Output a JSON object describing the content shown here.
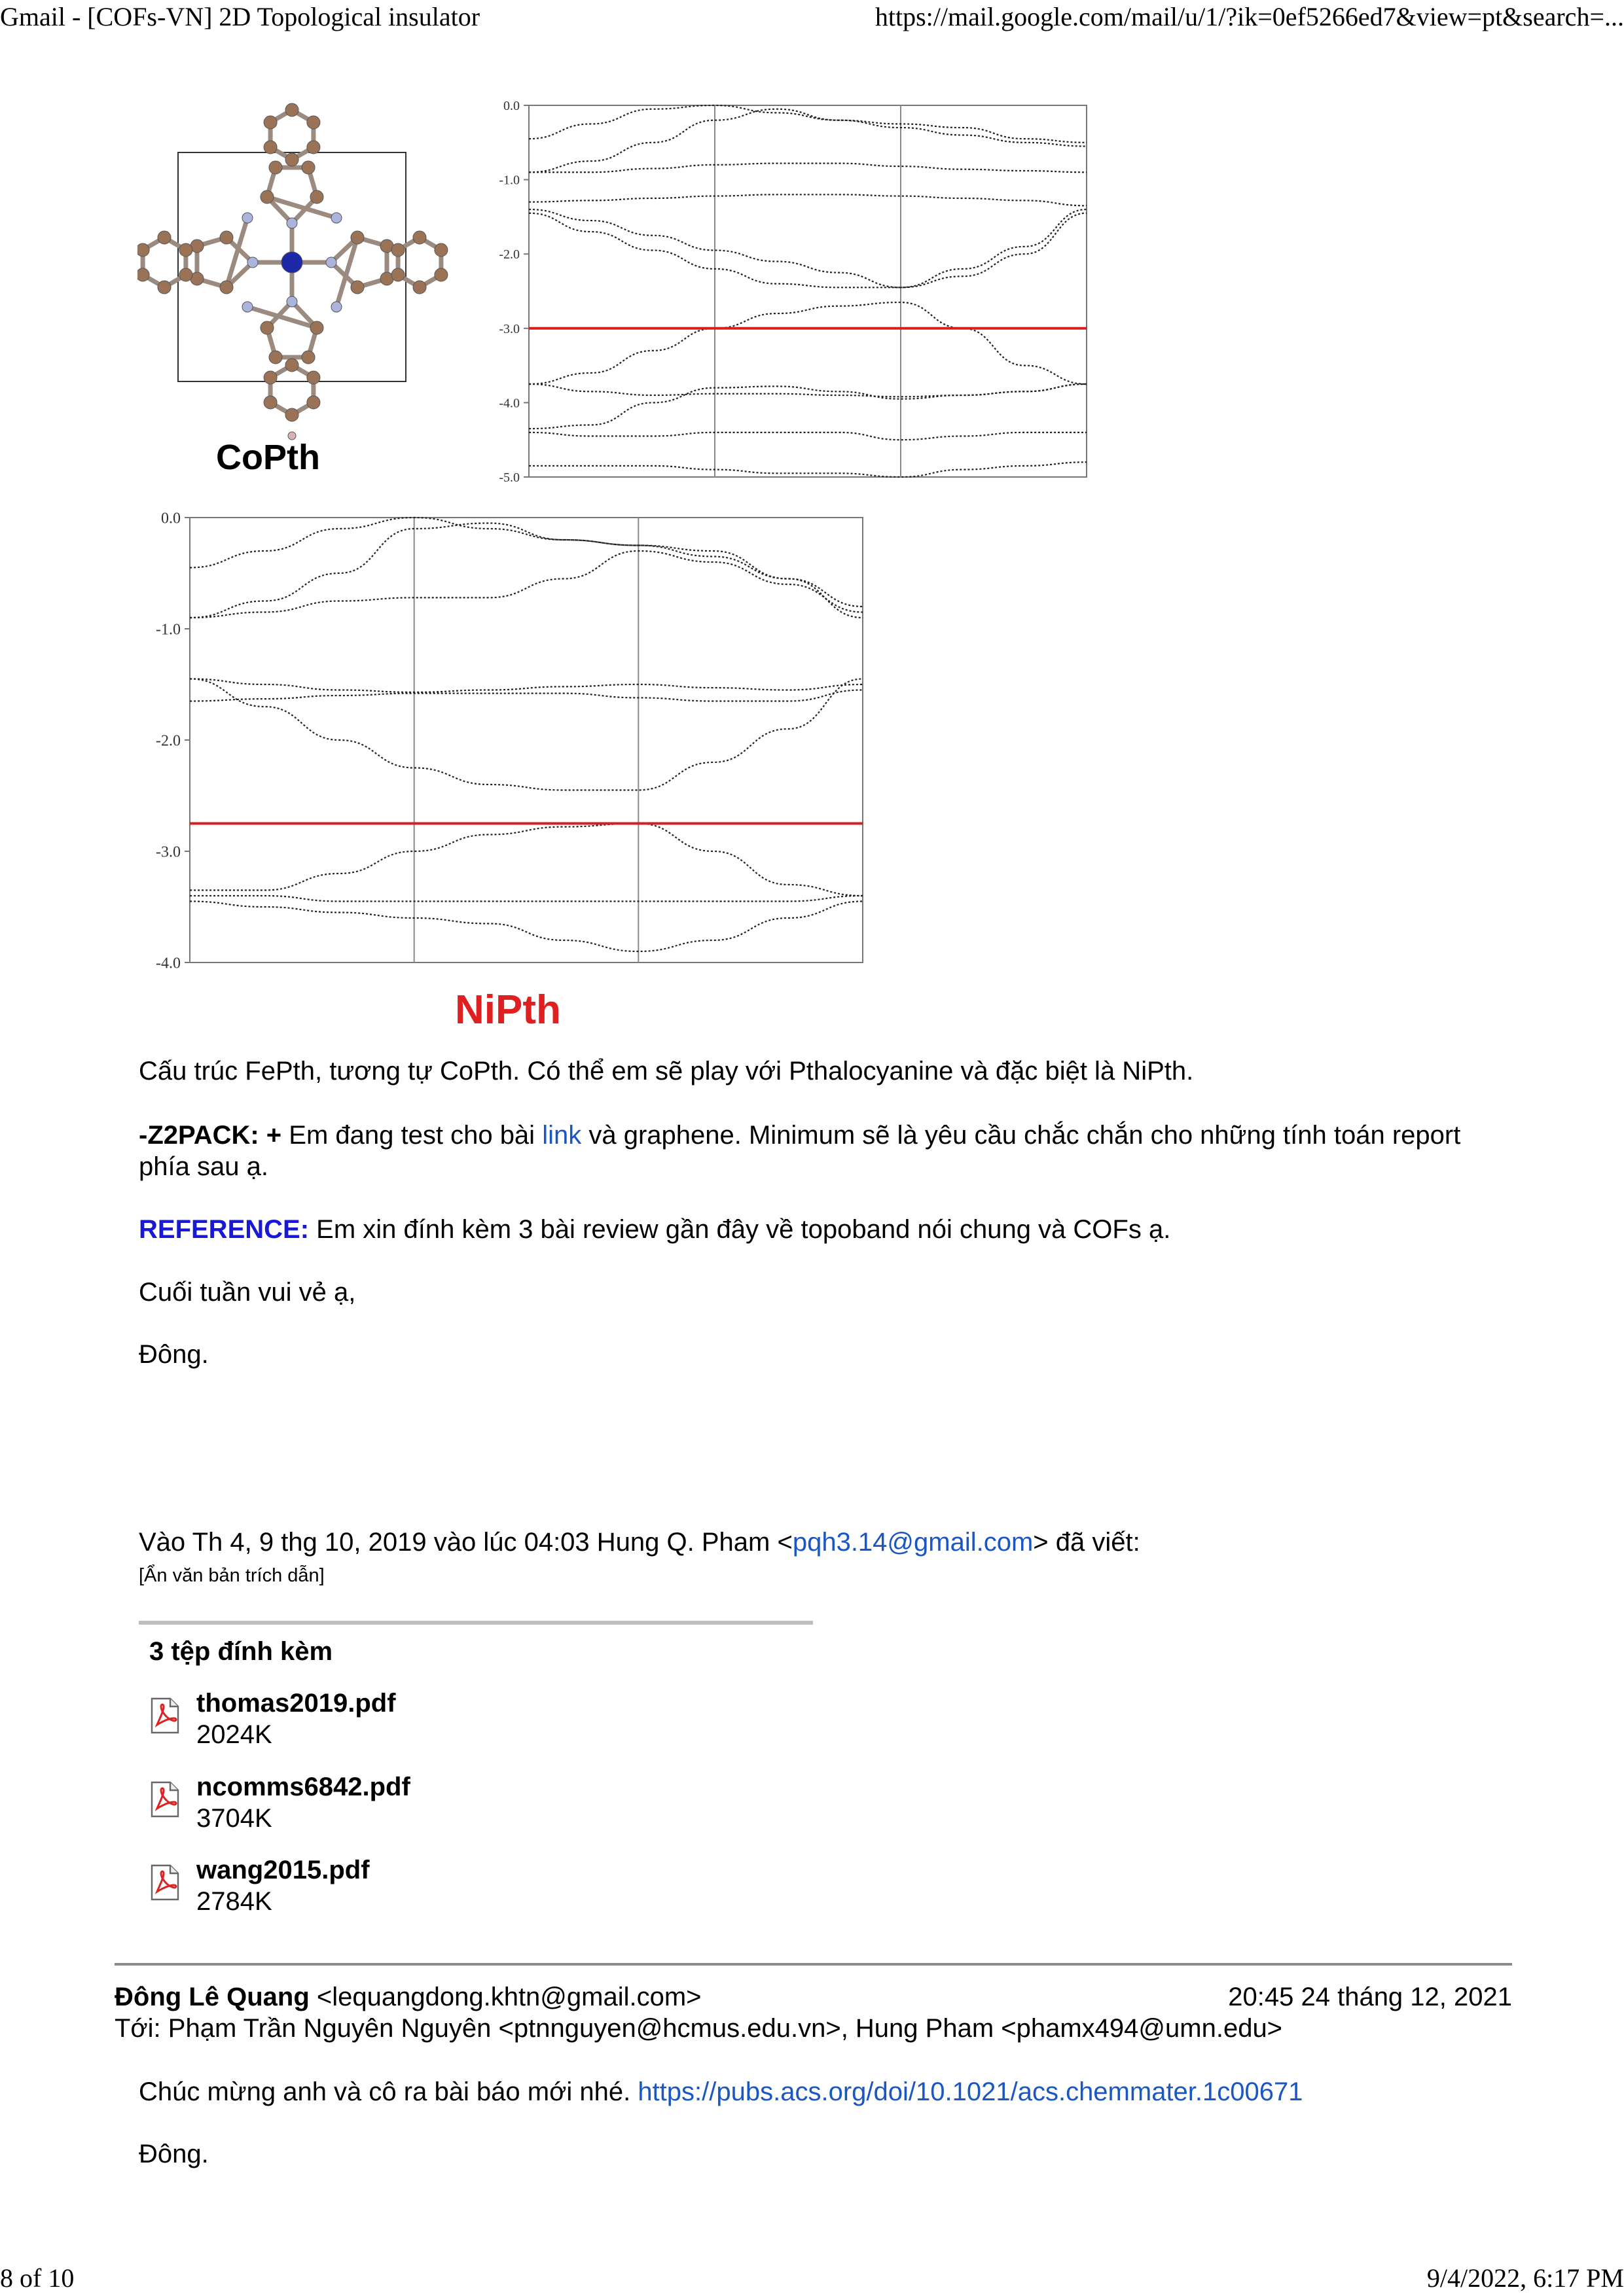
{
  "header": {
    "title": "Gmail - [COFs-VN] 2D Topological insulator",
    "url": "https://mail.google.com/mail/u/1/?ik=0ef5266ed7&view=pt&search=..."
  },
  "footer": {
    "page": "8 of 10",
    "datetime": "9/4/2022, 6:17 PM"
  },
  "figures": {
    "copth_label": "CoPth",
    "nipth_label": "NiPth"
  },
  "chart_data": [
    {
      "type": "line",
      "name_ref": "CoPth band structure",
      "ylim": [
        -5.0,
        0.0
      ],
      "yticks": [
        "0.0",
        "-1.0",
        "-2.0",
        "-3.0",
        "-4.0",
        "-5.0"
      ],
      "fermi_level": -3.0,
      "x_segments": 3,
      "bands": [
        [
          -0.45,
          -0.25,
          -0.05,
          0.0,
          -0.1,
          -0.2,
          -0.25,
          -0.3,
          -0.45,
          -0.5
        ],
        [
          -0.9,
          -0.75,
          -0.5,
          -0.2,
          -0.05,
          -0.2,
          -0.3,
          -0.4,
          -0.5,
          -0.55
        ],
        [
          -0.9,
          -0.9,
          -0.85,
          -0.8,
          -0.78,
          -0.78,
          -0.82,
          -0.86,
          -0.88,
          -0.9
        ],
        [
          -1.3,
          -1.28,
          -1.25,
          -1.22,
          -1.2,
          -1.2,
          -1.22,
          -1.25,
          -1.28,
          -1.35
        ],
        [
          -1.4,
          -1.55,
          -1.75,
          -1.95,
          -2.1,
          -2.25,
          -2.45,
          -2.2,
          -1.9,
          -1.4
        ],
        [
          -1.45,
          -1.7,
          -1.95,
          -2.2,
          -2.4,
          -2.45,
          -2.45,
          -2.3,
          -2.0,
          -1.45
        ],
        [
          -3.75,
          -3.6,
          -3.3,
          -3.0,
          -2.8,
          -2.7,
          -2.65,
          -3.0,
          -3.5,
          -3.75
        ],
        [
          -3.75,
          -3.85,
          -3.9,
          -3.88,
          -3.88,
          -3.9,
          -3.92,
          -3.9,
          -3.85,
          -3.75
        ],
        [
          -4.35,
          -4.3,
          -4.0,
          -3.8,
          -3.78,
          -3.85,
          -3.95,
          -3.9,
          -3.85,
          -3.75
        ],
        [
          -4.4,
          -4.45,
          -4.45,
          -4.4,
          -4.4,
          -4.4,
          -4.5,
          -4.45,
          -4.4,
          -4.4
        ],
        [
          -4.85,
          -4.85,
          -4.85,
          -4.9,
          -4.95,
          -4.95,
          -5.0,
          -4.9,
          -4.85,
          -4.8
        ]
      ]
    },
    {
      "type": "line",
      "name_ref": "NiPth band structure",
      "ylim": [
        -4.0,
        0.0
      ],
      "yticks": [
        "0.0",
        "-1.0",
        "-2.0",
        "-3.0",
        "-4.0"
      ],
      "fermi_level": -2.75,
      "x_segments": 3,
      "bands": [
        [
          -0.45,
          -0.3,
          -0.1,
          0.0,
          -0.1,
          -0.2,
          -0.25,
          -0.3,
          -0.55,
          -0.9
        ],
        [
          -0.9,
          -0.75,
          -0.5,
          -0.1,
          -0.05,
          -0.2,
          -0.25,
          -0.35,
          -0.55,
          -0.8
        ],
        [
          -0.9,
          -0.85,
          -0.75,
          -0.72,
          -0.72,
          -0.55,
          -0.3,
          -0.4,
          -0.6,
          -0.85
        ],
        [
          -1.45,
          -1.5,
          -1.55,
          -1.57,
          -1.55,
          -1.52,
          -1.5,
          -1.53,
          -1.55,
          -1.5
        ],
        [
          -1.65,
          -1.63,
          -1.6,
          -1.58,
          -1.58,
          -1.58,
          -1.62,
          -1.65,
          -1.65,
          -1.55
        ],
        [
          -1.45,
          -1.7,
          -2.0,
          -2.25,
          -2.4,
          -2.45,
          -2.45,
          -2.2,
          -1.9,
          -1.45
        ],
        [
          -3.35,
          -3.35,
          -3.2,
          -3.0,
          -2.85,
          -2.78,
          -2.75,
          -3.0,
          -3.3,
          -3.4
        ],
        [
          -3.4,
          -3.4,
          -3.45,
          -3.45,
          -3.45,
          -3.45,
          -3.45,
          -3.45,
          -3.45,
          -3.4
        ],
        [
          -3.45,
          -3.5,
          -3.55,
          -3.6,
          -3.65,
          -3.8,
          -3.9,
          -3.8,
          -3.6,
          -3.45
        ]
      ]
    }
  ],
  "body": {
    "para1": "Cấu trúc FePth, tương tự CoPth. Có thể em sẽ play với Pthalocyanine và đặc biệt là NiPth.",
    "z2pack_label": "-Z2PACK: +",
    "z2pack_text_a": " Em đang test cho bài ",
    "z2pack_link": "link",
    "z2pack_text_b": " và graphene. Minimum sẽ là yêu cầu chắc chắn cho những tính toán report phía sau ạ.",
    "reference_label": "REFERENCE:",
    "reference_text": " Em xin đính kèm 3 bài review gần đây về topoband nói chung và COFs ạ.",
    "closing": "Cuối tuần vui vẻ ạ,",
    "signature": "Đông."
  },
  "quote": {
    "intro_a": "Vào Th 4, 9 thg 10, 2019 vào lúc 04:03 Hung Q. Pham <",
    "email": "pqh3.14@gmail.com",
    "intro_b": "> đã viết:",
    "hidden": "[Ẩn văn bản trích dẫn]"
  },
  "attachments": {
    "heading": "3 tệp đính kèm",
    "items": [
      {
        "name": "thomas2019.pdf",
        "size": "2024K"
      },
      {
        "name": "ncomms6842.pdf",
        "size": "3704K"
      },
      {
        "name": "wang2015.pdf",
        "size": "2784K"
      }
    ]
  },
  "message2": {
    "sender_name": "Đông Lê Quang",
    "sender_email": " <lequangdong.khtn@gmail.com>",
    "date": "20:45 24 tháng 12, 2021",
    "to": "Tới: Phạm Trần Nguyên Nguyên <ptnnguyen@hcmus.edu.vn>, Hung Pham <phamx494@umn.edu>",
    "body_text": "Chúc mừng anh và cô ra bài báo mới nhé. ",
    "body_link": "https://pubs.acs.org/doi/10.1021/acs.chemmater.1c00671",
    "signature": "Đông."
  },
  "colors": {
    "link": "#1a56c6",
    "reference": "#1818d6",
    "fermi_line": "#d42020",
    "nipth_label": "#e02020",
    "carbon": "#9a7356",
    "nitrogen": "#aab4dc",
    "metal": "#1d28a8",
    "hydrogen": "#d9b3b3"
  }
}
